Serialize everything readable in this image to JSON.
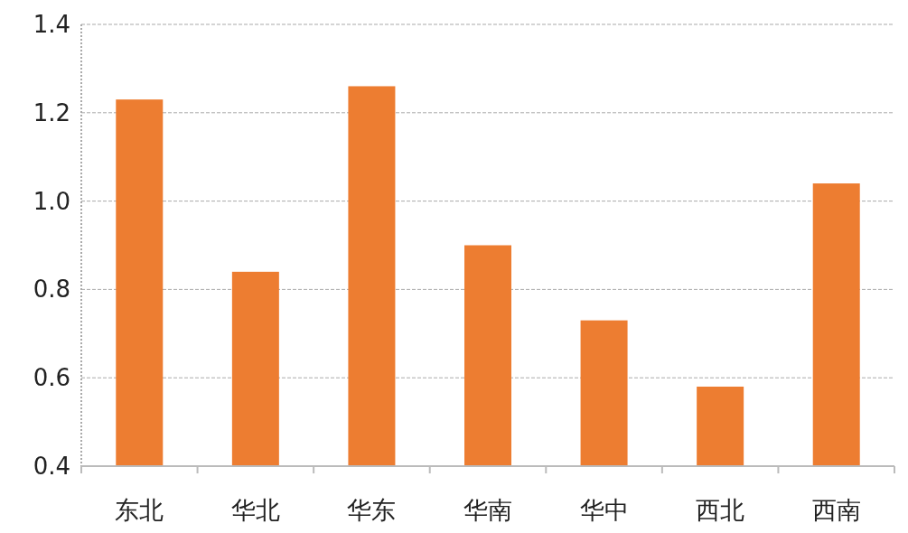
{
  "chart_data": {
    "type": "bar",
    "categories": [
      "东北",
      "华北",
      "华东",
      "华南",
      "华中",
      "西北",
      "西南"
    ],
    "values": [
      1.23,
      0.84,
      1.26,
      0.9,
      0.73,
      0.58,
      1.04
    ],
    "color": "#ed7d31",
    "ylim": [
      0.4,
      1.4
    ],
    "yticks": [
      {
        "value": 0.4,
        "label": "0.4"
      },
      {
        "value": 0.6,
        "label": "0.6"
      },
      {
        "value": 0.8,
        "label": "0.8"
      },
      {
        "value": 1.0,
        "label": "1.0"
      },
      {
        "value": 1.2,
        "label": "1.2"
      },
      {
        "value": 1.4,
        "label": "1.4"
      }
    ],
    "grid": "y"
  }
}
